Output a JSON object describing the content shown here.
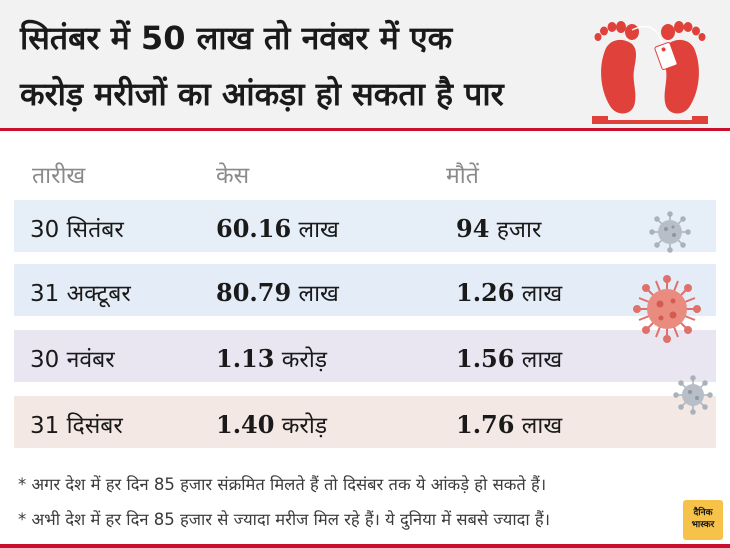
{
  "title_line1": "सितंबर में 50 लाख तो नवंबर में एक",
  "title_line2": "करोड़ मरीजों का आंकड़ा हो सकता है पार",
  "headers": {
    "date": "तारीख",
    "cases": "केस",
    "deaths": "मौतें"
  },
  "rows": [
    {
      "date": "30 सितंबर",
      "cases_num": "60.16",
      "cases_unit": "लाख",
      "deaths_num": "94",
      "deaths_unit": "हजार",
      "bg": "#e6eff7"
    },
    {
      "date": "31 अक्टूबर",
      "cases_num": "80.79",
      "cases_unit": "लाख",
      "deaths_num": "1.26",
      "deaths_unit": "लाख",
      "bg": "#e4ecf8"
    },
    {
      "date": "30 नवंबर",
      "cases_num": "1.13",
      "cases_unit": "करोड़",
      "deaths_num": "1.56",
      "deaths_unit": "लाख",
      "bg": "#e9e6f2"
    },
    {
      "date": "31 दिसंबर",
      "cases_num": "1.40",
      "cases_unit": "करोड़",
      "deaths_num": "1.76",
      "deaths_unit": "लाख",
      "bg": "#f3e8e4"
    }
  ],
  "notes": [
    "* अगर देश में हर दिन 85 हजार संक्रमित मिलते हैं तो दिसंबर तक ये आंकड़े हो सकते हैं।",
    "* अभी देश में हर दिन 85 हजार से ज्यादा मरीज मिल रहे हैं। ये दुनिया में सबसे ज्यादा हैं।"
  ],
  "logo": {
    "line1": "दैनिक",
    "line2": "भास्कर"
  },
  "colors": {
    "accent": "#c8102e",
    "header_bg": "#f2f2f2",
    "virus_pink": "#e0716a",
    "virus_gray": "#a9b1bb"
  },
  "icons": {
    "feet": "feet-with-toe-tag-icon",
    "virus": "coronavirus-icon"
  }
}
